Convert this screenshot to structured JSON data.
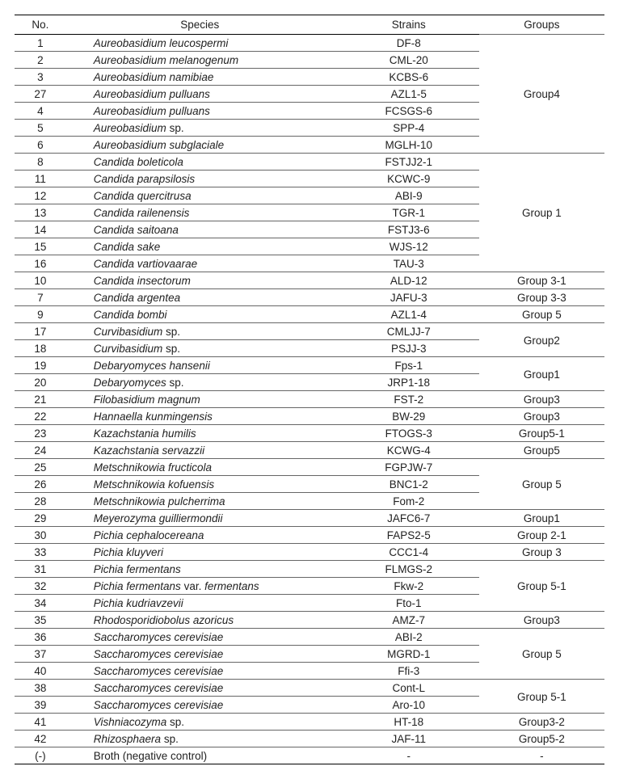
{
  "header": {
    "no": "No.",
    "species": "Species",
    "strains": "Strains",
    "groups": "Groups"
  },
  "rows": [
    {
      "no": "1",
      "species": "Aureobasidium leucospermi",
      "strain": "DF-8",
      "group": "Group4",
      "span": 7,
      "italic": true
    },
    {
      "no": "2",
      "species": "Aureobasidium melanogenum",
      "strain": "CML-20",
      "italic": true
    },
    {
      "no": "3",
      "species": "Aureobasidium namibiae",
      "strain": "KCBS-6",
      "italic": true
    },
    {
      "no": "27",
      "species": "Aureobasidium pulluans",
      "strain": "AZL1-5",
      "italic": true
    },
    {
      "no": "4",
      "species": "Aureobasidium pulluans",
      "strain": "FCSGS-6",
      "italic": true
    },
    {
      "no": "5",
      "species": "Aureobasidium ",
      "species_suffix": "sp.",
      "strain": "SPP-4",
      "italic": true,
      "mixed": true
    },
    {
      "no": "6",
      "species": "Aureobasidium subglaciale",
      "strain": "MGLH-10",
      "italic": true
    },
    {
      "no": "8",
      "species": "Candida boleticola",
      "strain": "FSTJJ2-1",
      "group": "Group 1",
      "span": 7,
      "italic": true
    },
    {
      "no": "11",
      "species": "Candida parapsilosis",
      "strain": "KCWC-9",
      "italic": true
    },
    {
      "no": "12",
      "species": "Candida quercitrusa",
      "strain": "ABI-9",
      "italic": true
    },
    {
      "no": "13",
      "species": "Candida railenensis",
      "strain": "TGR-1",
      "italic": true
    },
    {
      "no": "14",
      "species": "Candida saitoana",
      "strain": "FSTJ3-6",
      "italic": true
    },
    {
      "no": "15",
      "species": "Candida sake",
      "strain": "WJS-12",
      "italic": true
    },
    {
      "no": "16",
      "species": "Candida vartiovaarae",
      "strain": "TAU-3",
      "italic": true
    },
    {
      "no": "10",
      "species": "Candida insectorum",
      "strain": "ALD-12",
      "group": "Group 3-1",
      "span": 1,
      "italic": true
    },
    {
      "no": "7",
      "species": "Candida argentea",
      "strain": "JAFU-3",
      "group": "Group 3-3",
      "span": 1,
      "italic": true
    },
    {
      "no": "9",
      "species": "Candida bombi",
      "strain": "AZL1-4",
      "group": "Group 5",
      "span": 1,
      "italic": true
    },
    {
      "no": "17",
      "species": "Curvibasidium ",
      "species_suffix": "sp.",
      "strain": "CMLJJ-7",
      "group": "Group2",
      "span": 2,
      "italic": true,
      "mixed": true
    },
    {
      "no": "18",
      "species": "Curvibasidium ",
      "species_suffix": "sp.",
      "strain": "PSJJ-3",
      "italic": true,
      "mixed": true
    },
    {
      "no": "19",
      "species": "Debaryomyces hansenii",
      "strain": "Fps-1",
      "group": "Group1",
      "span": 2,
      "italic": true
    },
    {
      "no": "20",
      "species": "Debaryomyces ",
      "species_suffix": "sp.",
      "strain": "JRP1-18",
      "italic": true,
      "mixed": true
    },
    {
      "no": "21",
      "species": "Filobasidium magnum",
      "strain": "FST-2",
      "group": "Group3",
      "span": 1,
      "italic": true
    },
    {
      "no": "22",
      "species": "Hannaella kunmingensis",
      "strain": "BW-29",
      "group": "Group3",
      "span": 1,
      "italic": true
    },
    {
      "no": "23",
      "species": "Kazachstania humilis",
      "strain": "FTOGS-3",
      "group": "Group5-1",
      "span": 1,
      "italic": true
    },
    {
      "no": "24",
      "species": "Kazachstania servazzii",
      "strain": "KCWG-4",
      "group": "Group5",
      "span": 1,
      "italic": true
    },
    {
      "no": "25",
      "species": "Metschnikowia fructicola",
      "strain": "FGPJW-7",
      "group": "Group 5",
      "span": 3,
      "italic": true
    },
    {
      "no": "26",
      "species": "Metschnikowia kofuensis",
      "strain": "BNC1-2",
      "italic": true
    },
    {
      "no": "28",
      "species": "Metschnikowia pulcherrima",
      "strain": "Fom-2",
      "italic": true
    },
    {
      "no": "29",
      "species": "Meyerozyma guilliermondii",
      "strain": "JAFC6-7",
      "group": "Group1",
      "span": 1,
      "italic": true
    },
    {
      "no": "30",
      "species": "Pichia cephalocereana",
      "strain": "FAPS2-5",
      "group": "Group 2-1",
      "span": 1,
      "italic": true
    },
    {
      "no": "33",
      "species": "Pichia kluyveri",
      "strain": "CCC1-4",
      "group": "Group 3",
      "span": 1,
      "italic": true
    },
    {
      "no": "31",
      "species": "Pichia fermentans",
      "strain": "FLMGS-2",
      "group": "Group 5-1",
      "span": 3,
      "italic": true
    },
    {
      "no": "32",
      "species_html": "Pichia fermentans <span class=\"roman\">var.</span> fermentans",
      "strain": "Fkw-2",
      "italic": true,
      "mixed": true
    },
    {
      "no": "34",
      "species": "Pichia kudriavzevii",
      "strain": "Fto-1",
      "italic": true
    },
    {
      "no": "35",
      "species": "Rhodosporidiobolus azoricus",
      "strain": "AMZ-7",
      "group": "Group3",
      "span": 1,
      "italic": true
    },
    {
      "no": "36",
      "species": "Saccharomyces cerevisiae",
      "strain": "ABI-2",
      "group": "Group 5",
      "span": 3,
      "italic": true
    },
    {
      "no": "37",
      "species": "Saccharomyces cerevisiae",
      "strain": "MGRD-1",
      "italic": true
    },
    {
      "no": "40",
      "species": "Saccharomyces cerevisiae",
      "strain": "Ffi-3",
      "italic": true
    },
    {
      "no": "38",
      "species": "Saccharomyces cerevisiae",
      "strain": "Cont-L",
      "group": "Group 5-1",
      "span": 2,
      "italic": true
    },
    {
      "no": "39",
      "species": "Saccharomyces cerevisiae",
      "strain": "Aro-10",
      "italic": true
    },
    {
      "no": "41",
      "species": "Vishniacozyma ",
      "species_suffix": "sp.",
      "strain": "HT-18",
      "group": "Group3-2",
      "span": 1,
      "italic": true,
      "mixed": true
    },
    {
      "no": "42",
      "species": "Rhizosphaera ",
      "species_suffix": "sp.",
      "strain": "JAF-11",
      "group": "Group5-2",
      "span": 1,
      "italic": true,
      "mixed": true
    },
    {
      "no": "(-)",
      "species": "Broth (negative control)",
      "strain": "-",
      "group": "-",
      "span": 1,
      "italic": false
    }
  ]
}
